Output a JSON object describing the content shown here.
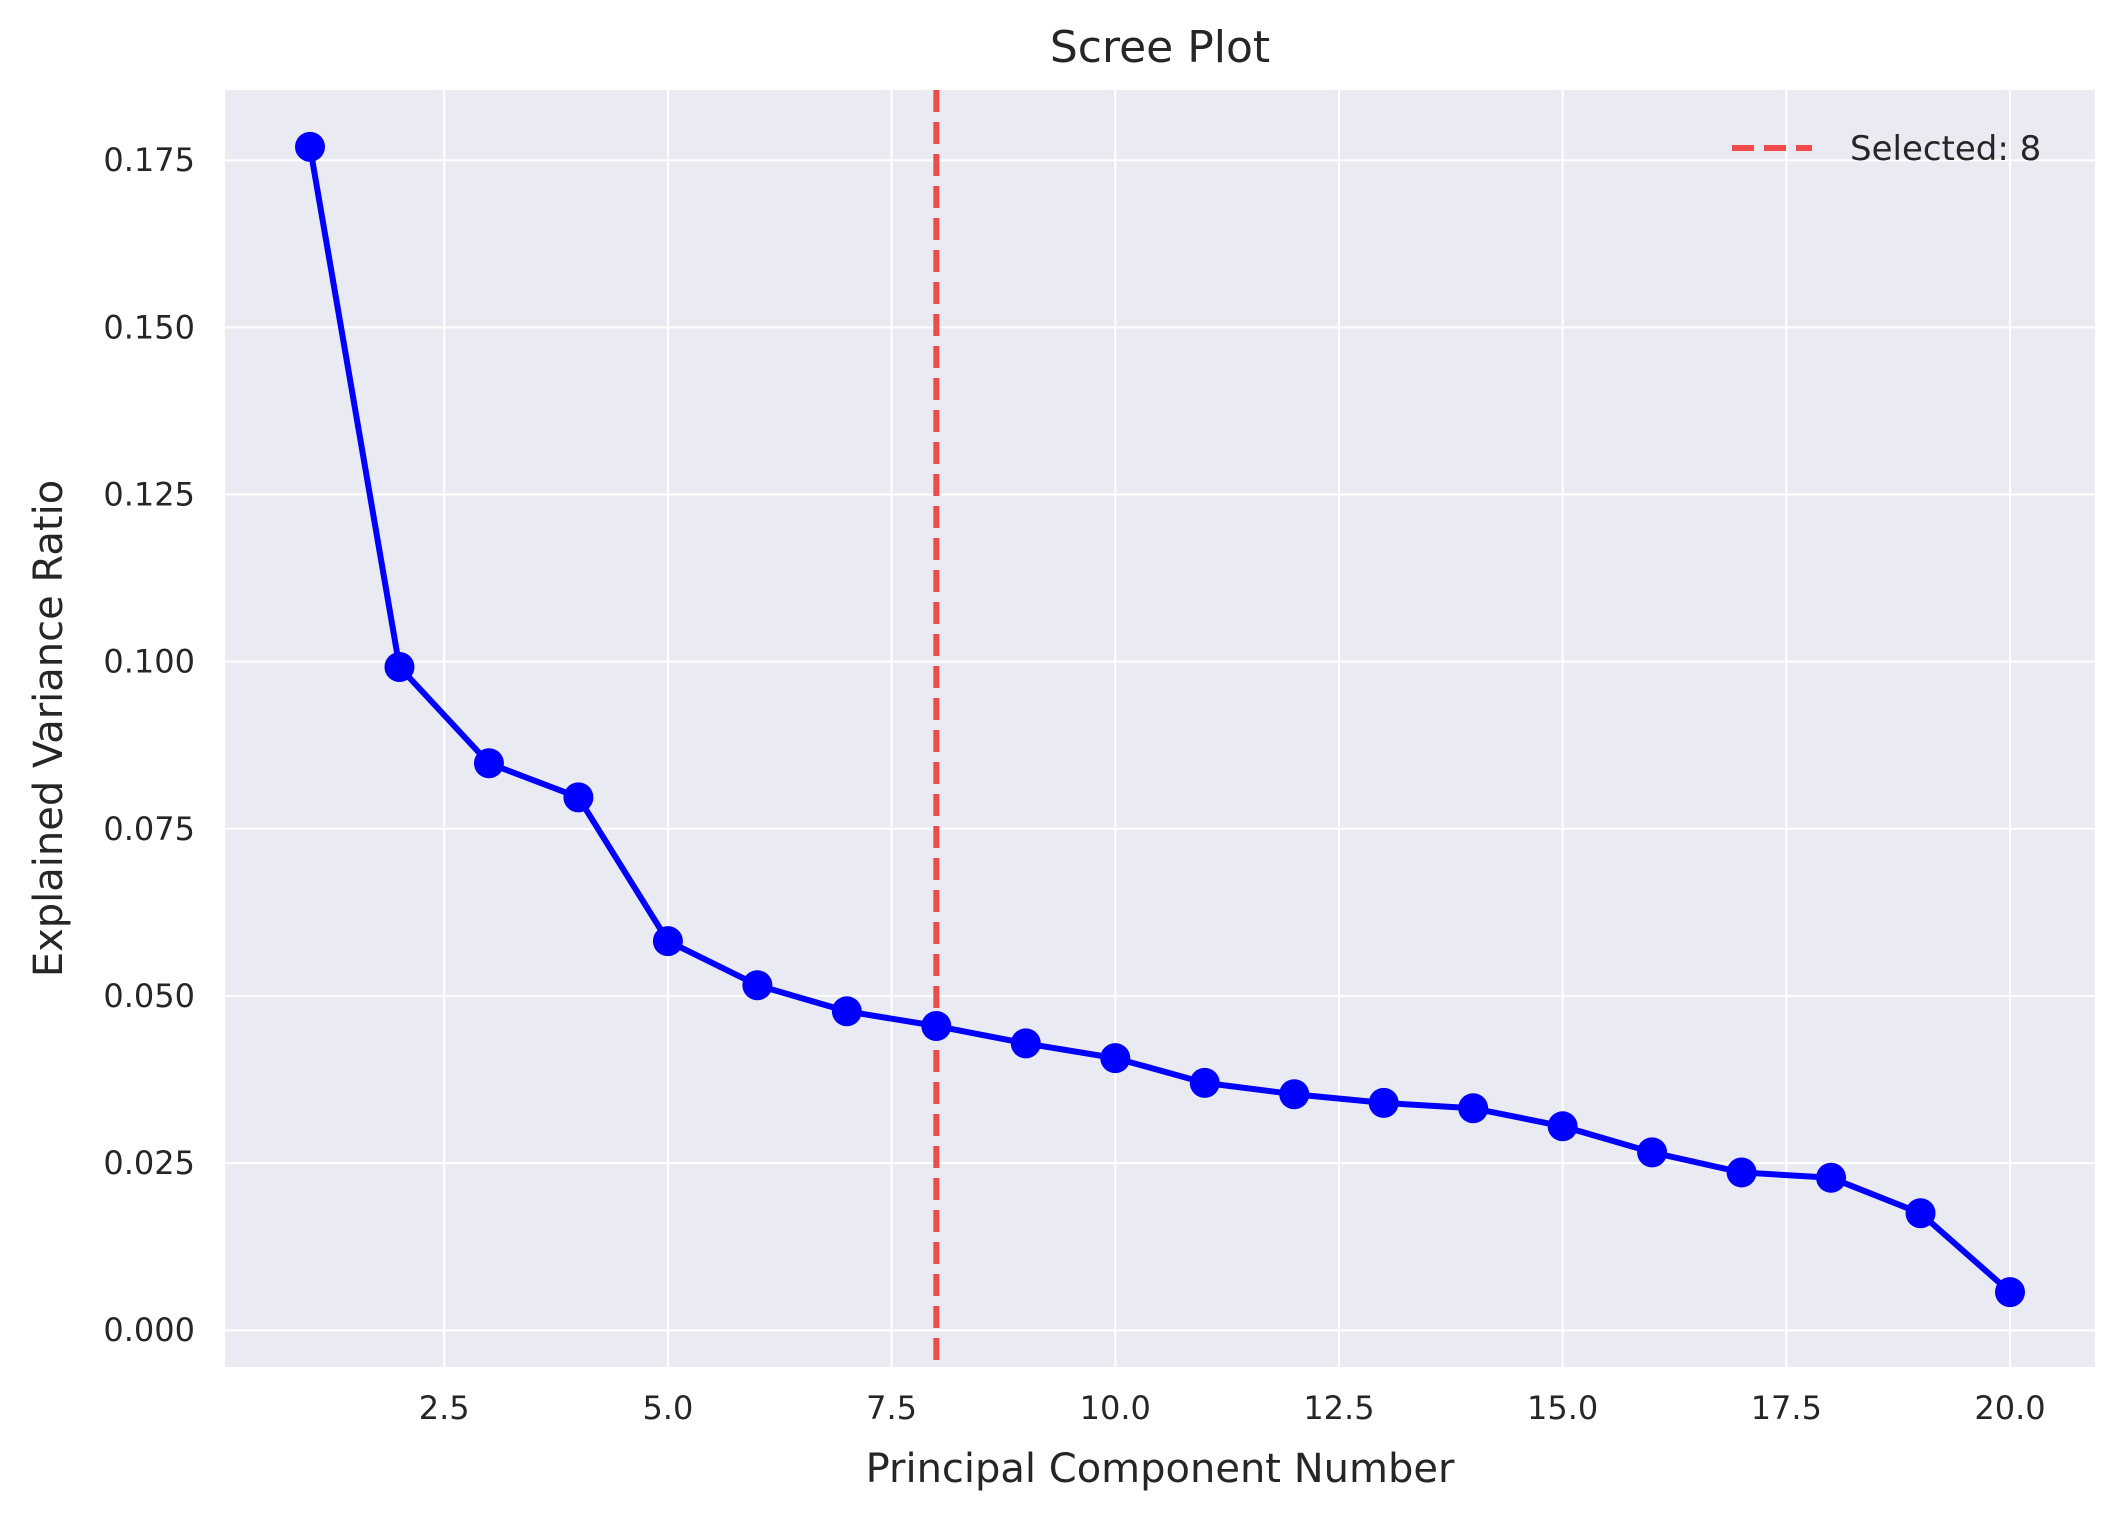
{
  "chart_data": {
    "type": "line",
    "title": "Scree Plot",
    "xlabel": "Principal Component Number",
    "ylabel": "Explained Variance Ratio",
    "xlim": [
      0.05,
      20.95
    ],
    "ylim": [
      -0.0055,
      0.1855
    ],
    "xticks": [
      2.5,
      5.0,
      7.5,
      10.0,
      12.5,
      15.0,
      17.5,
      20.0
    ],
    "xtick_labels": [
      "2.5",
      "5.0",
      "7.5",
      "10.0",
      "12.5",
      "15.0",
      "17.5",
      "20.0"
    ],
    "yticks": [
      0.0,
      0.025,
      0.05,
      0.075,
      0.1,
      0.125,
      0.15,
      0.175
    ],
    "ytick_labels": [
      "0.000",
      "0.025",
      "0.050",
      "0.075",
      "0.100",
      "0.125",
      "0.150",
      "0.175"
    ],
    "grid": true,
    "legend_position": "top-right",
    "series": [
      {
        "color": "#0000ff",
        "marker": "circle",
        "x": [
          1,
          2,
          3,
          4,
          5,
          6,
          7,
          8,
          9,
          10,
          11,
          12,
          13,
          14,
          15,
          16,
          17,
          18,
          19,
          20
        ],
        "y": [
          0.177,
          0.0992,
          0.0848,
          0.0797,
          0.0582,
          0.0516,
          0.0477,
          0.0455,
          0.0429,
          0.0407,
          0.037,
          0.0353,
          0.034,
          0.0332,
          0.0305,
          0.0266,
          0.0236,
          0.0228,
          0.0175,
          0.0057
        ]
      }
    ],
    "reference_lines": [
      {
        "orientation": "vertical",
        "x": 8,
        "style": "dashed",
        "color": "#f04a4a",
        "label": "Selected: 8"
      }
    ],
    "background_color": "#eaeaf2",
    "grid_color": "#ffffff"
  }
}
